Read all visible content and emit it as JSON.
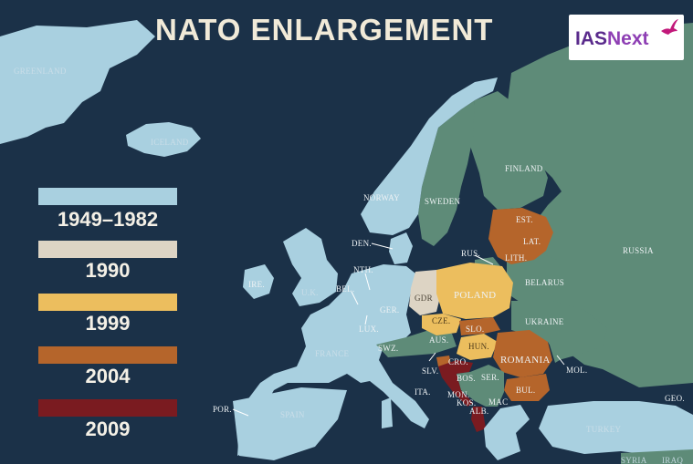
{
  "title": "NATO ENLARGEMENT",
  "logo": {
    "text_ias": "IAS",
    "text_next": "Next"
  },
  "colors": {
    "ocean": "#1b3148",
    "non_member": "#5e8b78",
    "c1949": "#a9d0e0",
    "c1990": "#ddd4c4",
    "c1999": "#ecbe5e",
    "c2004": "#b5652b",
    "c2009": "#7a1b20"
  },
  "legend": [
    {
      "label": "1949–1982",
      "color": "#a9d0e0"
    },
    {
      "label": "1990",
      "color": "#ddd4c4"
    },
    {
      "label": "1999",
      "color": "#ecbe5e"
    },
    {
      "label": "2004",
      "color": "#b5652b"
    },
    {
      "label": "2009",
      "color": "#7a1b20"
    }
  ],
  "labels": {
    "greenland": "GREENLAND",
    "iceland": "ICELAND",
    "norway": "NORWAY",
    "sweden": "SWEDEN",
    "finland": "FINLAND",
    "russia": "RUSSIA",
    "rus": "RUS.",
    "est": "EST.",
    "lat": "LAT.",
    "lith": "LITH.",
    "belarus": "BELARUS",
    "poland": "POLAND",
    "ukraine": "UKRAINE",
    "den": "DEN.",
    "nth": "NTH.",
    "bel": "BEL.",
    "lux": "LUX.",
    "ger": "GER.",
    "gdr": "GDR",
    "cze": "CZE.",
    "slo": "SLO.",
    "aus": "AUS.",
    "hun": "HUN.",
    "romania": "ROMANIA",
    "mol": "MOL.",
    "swz": "SWZ.",
    "france": "FRANCE",
    "ire": "IRE.",
    "uk": "U.K.",
    "por": "POR.",
    "spain": "SPAIN",
    "ita": "ITA.",
    "slv": "SLV.",
    "cro": "CRO.",
    "bos": "BOS.",
    "ser": "SER.",
    "mon": "MON.",
    "kos": "KOS.",
    "mac": "MAC",
    "alb": "ALB.",
    "bul": "BUL.",
    "geo": "GEO.",
    "turkey": "TURKEY",
    "syria": "SYRIA",
    "iraq": "IRAQ"
  }
}
